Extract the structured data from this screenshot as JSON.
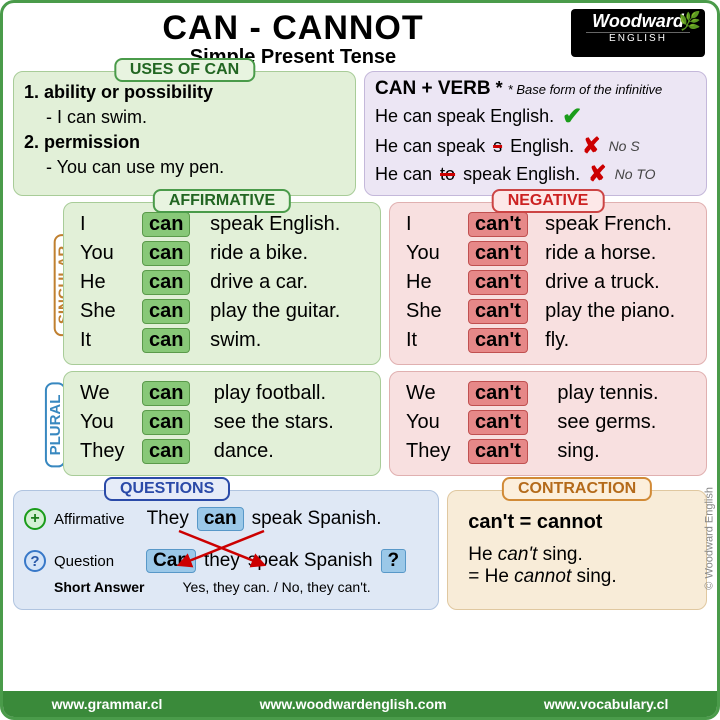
{
  "title": "CAN - CANNOT",
  "subtitle": "Simple Present Tense",
  "logo": {
    "name": "Woodward",
    "sub": "ENGLISH"
  },
  "uses": {
    "label": "USES OF CAN",
    "items": [
      {
        "title": "1. ability or possibility",
        "example": "- I can swim."
      },
      {
        "title": "2. permission",
        "example": "- You can use my pen."
      }
    ]
  },
  "verbRule": {
    "title": "CAN + VERB",
    "note": "* Base form of the infinitive",
    "asterisk": "*",
    "lines": [
      {
        "text": "He can speak English.",
        "mark": "check",
        "note": ""
      },
      {
        "pre": "He can speak",
        "struck": "s",
        "post": " English.",
        "mark": "x",
        "note": "No S"
      },
      {
        "pre": "He can ",
        "struck": "to",
        "post": " speak English.",
        "mark": "x",
        "note": "No TO"
      }
    ]
  },
  "labels": {
    "affirmative": "AFFIRMATIVE",
    "negative": "NEGATIVE",
    "singular": "SINGULAR",
    "plural": "PLURAL",
    "questions": "QUESTIONS",
    "contraction": "CONTRACTION"
  },
  "aff_sing": [
    [
      "I",
      "can",
      "speak English."
    ],
    [
      "You",
      "can",
      "ride a bike."
    ],
    [
      "He",
      "can",
      "drive a car."
    ],
    [
      "She",
      "can",
      "play the guitar."
    ],
    [
      "It",
      "can",
      "swim."
    ]
  ],
  "aff_plur": [
    [
      "We",
      "can",
      "play football."
    ],
    [
      "You",
      "can",
      "see the stars."
    ],
    [
      "They",
      "can",
      "dance."
    ]
  ],
  "neg_sing": [
    [
      "I",
      "can't",
      "speak French."
    ],
    [
      "You",
      "can't",
      "ride a horse."
    ],
    [
      "He",
      "can't",
      "drive a truck."
    ],
    [
      "She",
      "can't",
      "play the piano."
    ],
    [
      "It",
      "can't",
      "fly."
    ]
  ],
  "neg_plur": [
    [
      "We",
      "can't",
      "play tennis."
    ],
    [
      "You",
      "can't",
      "see germs."
    ],
    [
      "They",
      "can't",
      "sing."
    ]
  ],
  "questions": {
    "affLabel": "Affirmative",
    "qLabel": "Question",
    "saLabel": "Short Answer",
    "line1": {
      "subj": "They",
      "modal": "can",
      "rest": "speak Spanish."
    },
    "line2": {
      "modal": "Can",
      "subj": "they",
      "rest": "speak Spanish",
      "qmark": "?"
    },
    "shortAnswer": "Yes, they can. / No, they can't."
  },
  "contraction": {
    "eq": "can't = cannot",
    "ex1a": "He ",
    "ex1b": "can't",
    "ex1c": " sing.",
    "ex2a": "= He ",
    "ex2b": "cannot",
    "ex2c": " sing."
  },
  "footer": [
    "www.grammar.cl",
    "www.woodwardenglish.com",
    "www.vocabulary.cl"
  ],
  "copyright": "© Woodward English"
}
